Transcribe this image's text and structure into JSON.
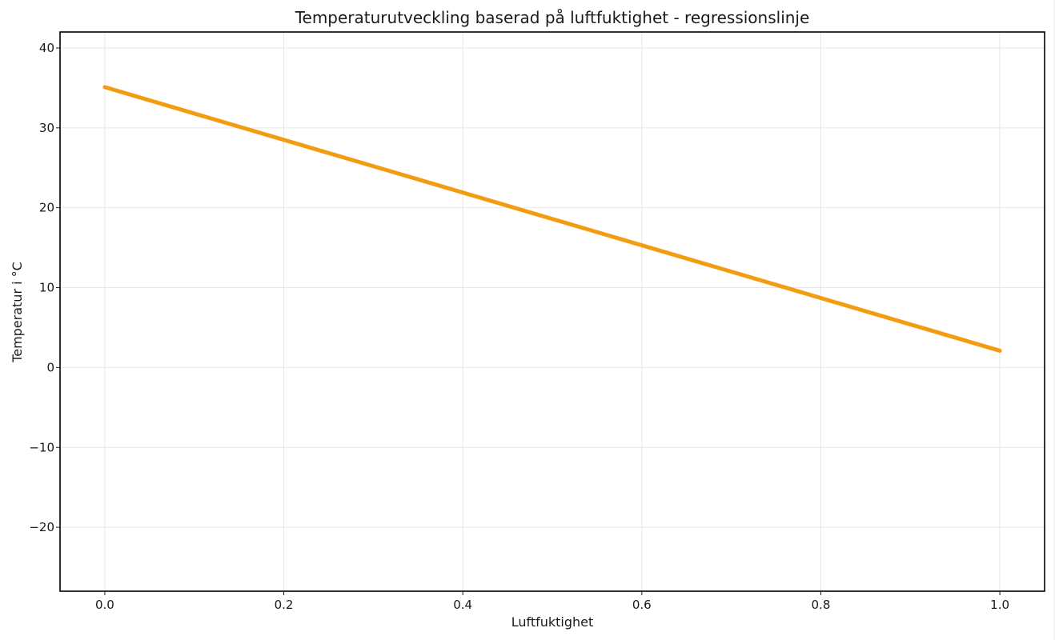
{
  "chart_data": {
    "type": "line",
    "title": "Temperaturutveckling baserad på luftfuktighet - regressionslinje",
    "xlabel": "Luftfuktighet",
    "ylabel": "Temperatur i °C",
    "xlim": [
      -0.05,
      1.05
    ],
    "ylim": [
      -28,
      42
    ],
    "xticks": [
      0.0,
      0.2,
      0.4,
      0.6,
      0.8,
      1.0
    ],
    "xtick_labels": [
      "0.0",
      "0.2",
      "0.4",
      "0.6",
      "0.8",
      "1.0"
    ],
    "yticks": [
      -20,
      -10,
      0,
      10,
      20,
      30,
      40
    ],
    "ytick_labels": [
      "−20",
      "−10",
      "0",
      "10",
      "20",
      "30",
      "40"
    ],
    "grid": true,
    "legend": "none",
    "series": [
      {
        "color": "#f39c12",
        "x": [
          0.0,
          1.0
        ],
        "y": [
          35.1,
          2.1
        ]
      }
    ]
  }
}
